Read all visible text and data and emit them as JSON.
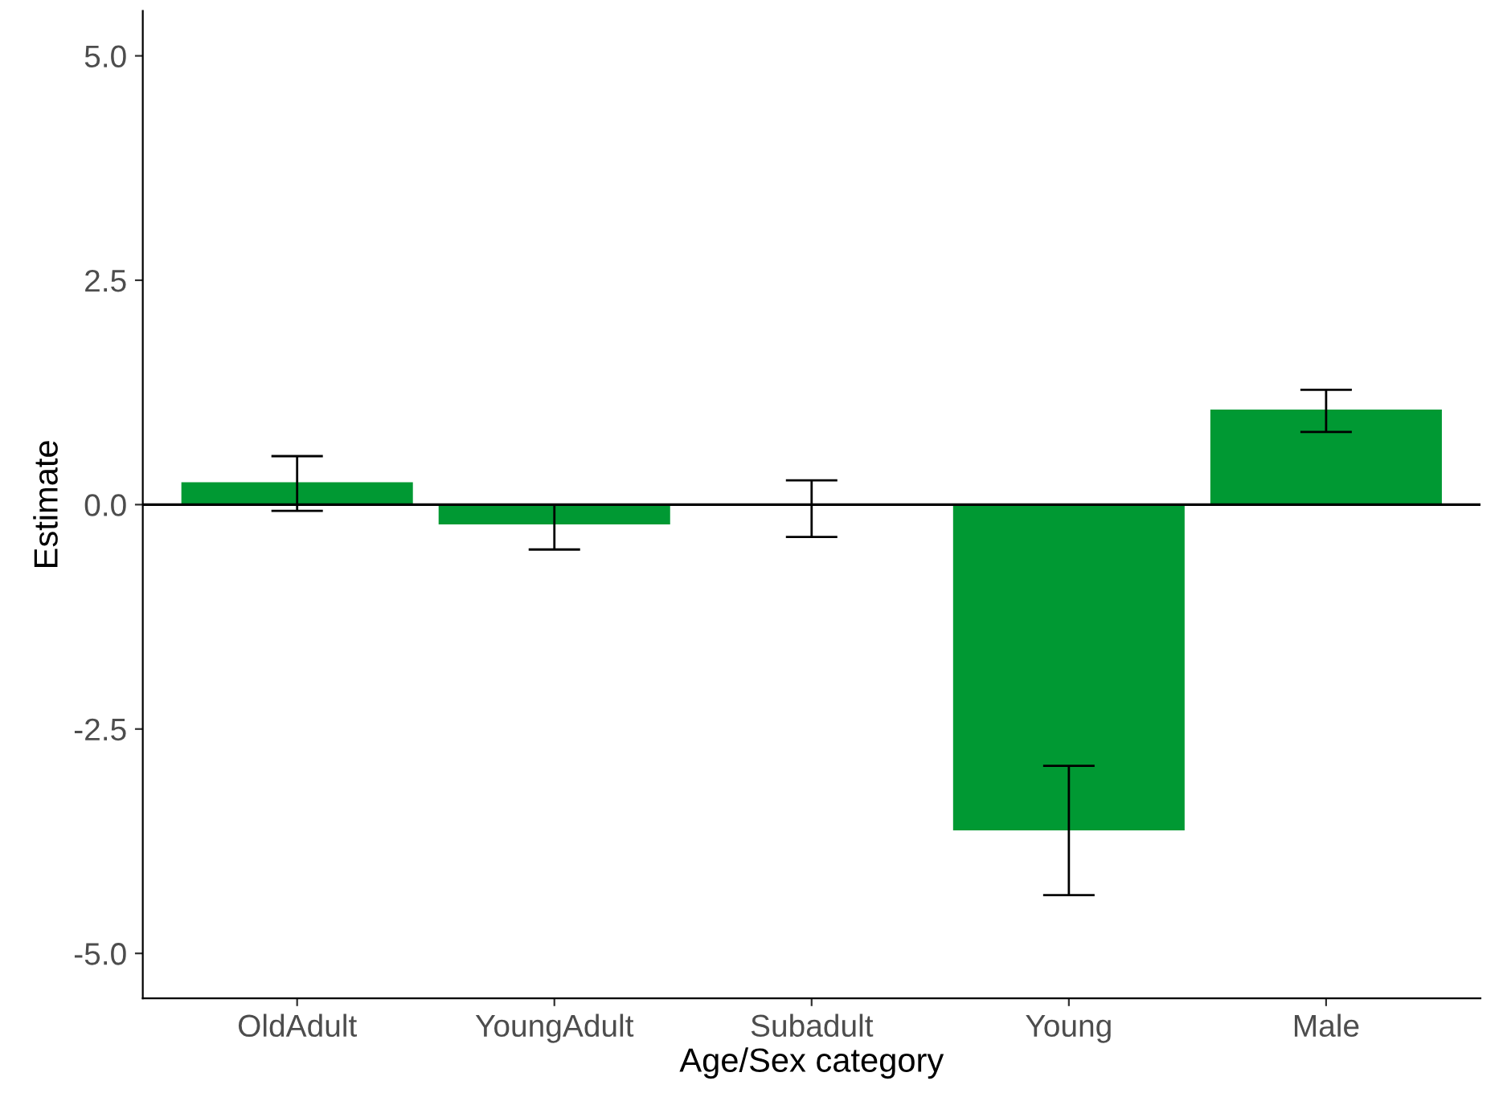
{
  "chart_data": {
    "type": "bar",
    "xlabel": "Age/Sex category",
    "ylabel": "Estimate",
    "categories": [
      "OldAdult",
      "YoungAdult",
      "Subadult",
      "Young",
      "Male"
    ],
    "values": [
      0.25,
      -0.22,
      0.0,
      -3.63,
      1.06
    ],
    "errors": [
      [
        -0.07,
        0.54
      ],
      [
        -0.5,
        0.0
      ],
      [
        -0.36,
        0.27
      ],
      [
        -4.35,
        -2.91
      ],
      [
        0.81,
        1.28
      ]
    ],
    "color": "#009933",
    "ylim": [
      -5.5,
      5.5
    ],
    "yticks": [
      {
        "value": 5,
        "label": "5.0"
      },
      {
        "value": 2.5,
        "label": "2.5"
      },
      {
        "value": 0,
        "label": "0.0"
      },
      {
        "value": -2.5,
        "label": "-2.5"
      },
      {
        "value": -5,
        "label": "-5.0"
      }
    ],
    "ref_lines": [
      {
        "axis": "y",
        "value": 0,
        "color": "#000000"
      }
    ],
    "grid": false
  }
}
